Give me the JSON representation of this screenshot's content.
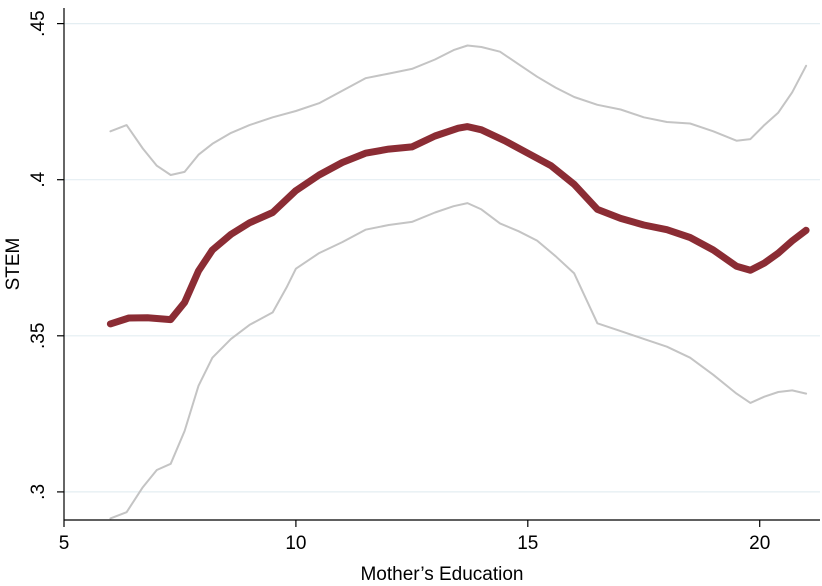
{
  "chart_data": {
    "type": "line",
    "title": "",
    "xlabel": "Mother’s Education",
    "ylabel": "STEM",
    "xlim": [
      5,
      21.3
    ],
    "ylim": [
      0.291,
      0.455
    ],
    "xticks": [
      5,
      10,
      15,
      20
    ],
    "xtick_labels": [
      "5",
      "10",
      "15",
      "20"
    ],
    "yticks": [
      0.3,
      0.35,
      0.4,
      0.45
    ],
    "ytick_labels": [
      ".3",
      ".35",
      ".4",
      ".45"
    ],
    "grid": true,
    "legend": "none",
    "series": [
      {
        "role": "upper_ci",
        "color": "#c4c4c4",
        "x": [
          6,
          6.35,
          6.7,
          7.0,
          7.3,
          7.6,
          7.9,
          8.2,
          8.6,
          9.0,
          9.5,
          10.0,
          10.5,
          11.0,
          11.5,
          12.0,
          12.5,
          13.0,
          13.4,
          13.7,
          14.0,
          14.4,
          14.8,
          15.2,
          15.6,
          16.0,
          16.5,
          17.0,
          17.5,
          18.0,
          18.5,
          19.0,
          19.5,
          19.8,
          20.1,
          20.4,
          20.7,
          21.0
        ],
        "values": [
          0.4155,
          0.4175,
          0.41,
          0.4045,
          0.4015,
          0.4025,
          0.408,
          0.4115,
          0.415,
          0.4175,
          0.42,
          0.422,
          0.4245,
          0.4285,
          0.4325,
          0.434,
          0.4355,
          0.4385,
          0.4415,
          0.443,
          0.4425,
          0.441,
          0.437,
          0.433,
          0.4295,
          0.4265,
          0.424,
          0.4225,
          0.42,
          0.4185,
          0.418,
          0.4155,
          0.4125,
          0.413,
          0.4175,
          0.4215,
          0.428,
          0.4365
        ]
      },
      {
        "role": "estimate",
        "color": "#8b2c34",
        "x": [
          6,
          6.4,
          6.8,
          7.3,
          7.6,
          7.9,
          8.2,
          8.6,
          9.0,
          9.5,
          10.0,
          10.5,
          11.0,
          11.5,
          12.0,
          12.5,
          13.0,
          13.5,
          13.7,
          14.0,
          14.5,
          15.0,
          15.5,
          16.0,
          16.5,
          17.0,
          17.5,
          18.0,
          18.5,
          19.0,
          19.5,
          19.8,
          20.1,
          20.4,
          20.7,
          21.0
        ],
        "values": [
          0.3538,
          0.3557,
          0.3558,
          0.3552,
          0.3607,
          0.3708,
          0.3775,
          0.3825,
          0.3862,
          0.3895,
          0.3965,
          0.4015,
          0.4055,
          0.4085,
          0.4098,
          0.4105,
          0.414,
          0.4165,
          0.417,
          0.416,
          0.4125,
          0.4085,
          0.4045,
          0.3985,
          0.3905,
          0.3876,
          0.3855,
          0.384,
          0.3815,
          0.3775,
          0.3723,
          0.371,
          0.3733,
          0.3765,
          0.3804,
          0.3838
        ]
      },
      {
        "role": "lower_ci",
        "color": "#c4c4c4",
        "x": [
          6,
          6.35,
          6.7,
          7.0,
          7.3,
          7.6,
          7.9,
          8.2,
          8.6,
          9.0,
          9.5,
          9.8,
          10.0,
          10.5,
          11.0,
          11.5,
          12.0,
          12.5,
          13.0,
          13.4,
          13.7,
          14.0,
          14.4,
          14.8,
          15.2,
          15.6,
          16.0,
          16.5,
          17.0,
          17.5,
          18.0,
          18.5,
          19.0,
          19.5,
          19.8,
          20.1,
          20.4,
          20.7,
          21.0
        ],
        "values": [
          0.2915,
          0.2935,
          0.3015,
          0.307,
          0.309,
          0.3195,
          0.334,
          0.343,
          0.349,
          0.3535,
          0.3575,
          0.3655,
          0.3715,
          0.3765,
          0.38,
          0.384,
          0.3855,
          0.3865,
          0.3895,
          0.3915,
          0.3925,
          0.3905,
          0.386,
          0.3835,
          0.3805,
          0.3755,
          0.37,
          0.354,
          0.3515,
          0.349,
          0.3465,
          0.343,
          0.3375,
          0.3315,
          0.3285,
          0.3305,
          0.332,
          0.3325,
          0.3315
        ]
      }
    ]
  }
}
